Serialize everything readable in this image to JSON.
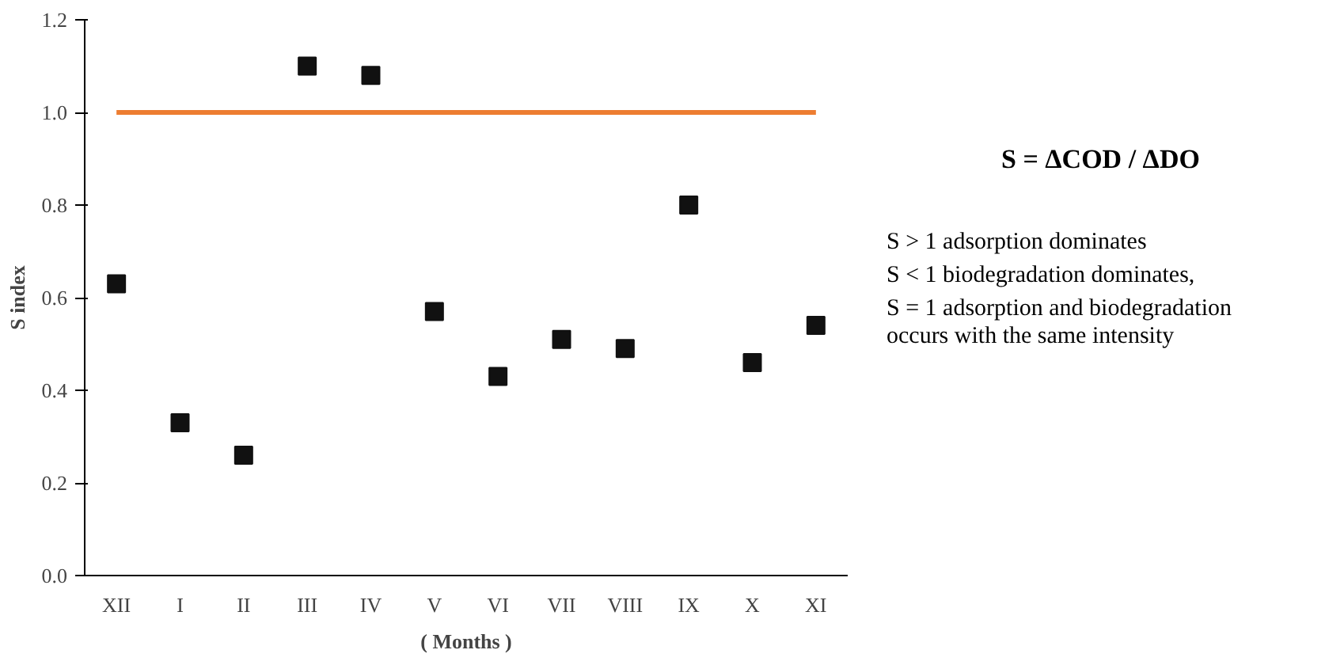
{
  "chart_data": {
    "type": "scatter",
    "xlabel": "( Months )",
    "ylabel": "S index",
    "categories": [
      "XII",
      "I",
      "II",
      "III",
      "IV",
      "V",
      "VI",
      "VII",
      "VIII",
      "IX",
      "X",
      "XI"
    ],
    "values": [
      0.63,
      0.33,
      0.26,
      1.1,
      1.08,
      0.57,
      0.43,
      0.51,
      0.49,
      0.8,
      0.46,
      0.54
    ],
    "color": "#111111",
    "marker": "square",
    "grid": false,
    "ylim": [
      0,
      1.2
    ],
    "yticks": [
      {
        "value": 0,
        "label": "0.0"
      },
      {
        "value": 0.2,
        "label": "0.2"
      },
      {
        "value": 0.4,
        "label": "0.4"
      },
      {
        "value": 0.6,
        "label": "0.6"
      },
      {
        "value": 0.8,
        "label": "0.8"
      },
      {
        "value": 1.0,
        "label": "1.0"
      },
      {
        "value": 1.2,
        "label": "1.2"
      }
    ],
    "ref_lines": [
      {
        "axis": "y",
        "value": 1.0,
        "label": null,
        "color": "#ed7d31"
      }
    ],
    "annotations": [
      "S = ΔCOD / ΔDO",
      "S > 1 adsorption dominates",
      "S < 1 biodegradation dominates,",
      "S = 1 adsorption and biodegradation",
      "occurs with the same intensity"
    ]
  }
}
